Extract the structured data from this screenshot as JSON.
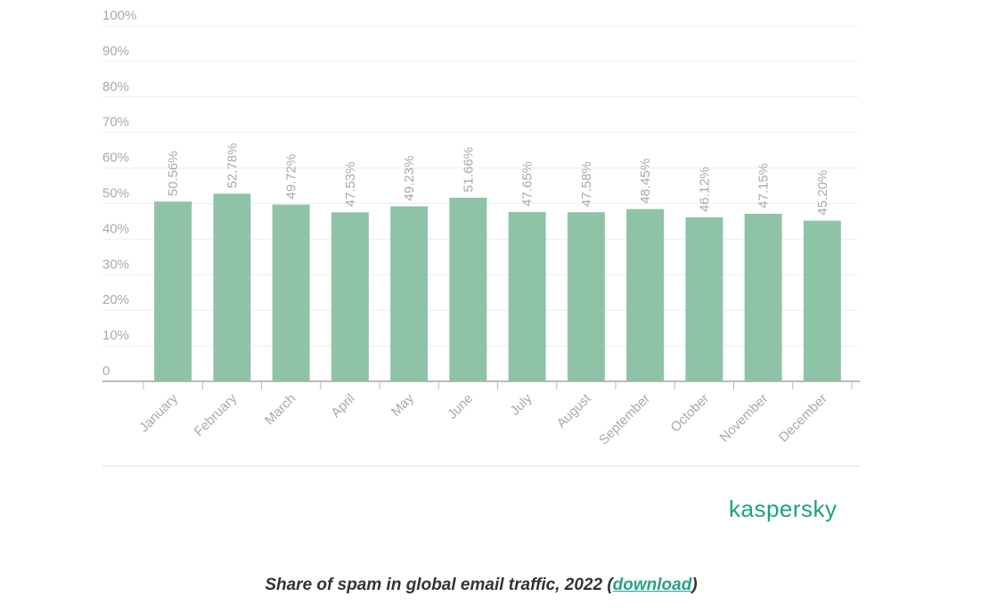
{
  "chart_data": {
    "type": "bar",
    "categories": [
      "January",
      "February",
      "March",
      "April",
      "May",
      "June",
      "July",
      "August",
      "September",
      "October",
      "November",
      "December"
    ],
    "values": [
      50.56,
      52.78,
      49.72,
      47.53,
      49.23,
      51.66,
      47.65,
      47.58,
      48.45,
      46.12,
      47.15,
      45.2
    ],
    "value_labels": [
      "50.56%",
      "52.78%",
      "49.72%",
      "47.53%",
      "49.23%",
      "51.66%",
      "47.65%",
      "47.58%",
      "48.45%",
      "46.12%",
      "47.15%",
      "45.20%"
    ],
    "color": "#8fc3a8",
    "ylim": [
      0,
      100
    ],
    "yticks": [
      0,
      {
        "value": 10,
        "label": "10%"
      },
      {
        "value": 20,
        "label": "20%"
      },
      {
        "value": 30,
        "label": "30%"
      },
      {
        "value": 40,
        "label": "40%"
      },
      {
        "value": 50,
        "label": "50%"
      },
      {
        "value": 60,
        "label": "60%"
      },
      {
        "value": 70,
        "label": "70%"
      },
      {
        "value": 80,
        "label": "80%"
      },
      {
        "value": 90,
        "label": "90%"
      },
      {
        "value": 100,
        "label": "100%"
      }
    ],
    "grid": true
  },
  "logo": "kaspersky",
  "caption": {
    "text": "Share of spam in global email traffic, 2022 (",
    "link": "download",
    "end": ")"
  }
}
